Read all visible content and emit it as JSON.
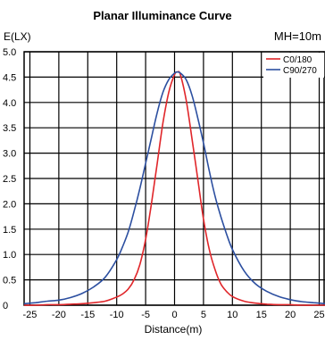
{
  "chart_data": {
    "type": "line",
    "title": "Planar Illuminance Curve",
    "xlabel": "Distance(m)",
    "ylabel": "E(LX)",
    "annotation": "MH=10m",
    "xlim": [
      -26,
      26
    ],
    "ylim": [
      0,
      5.0
    ],
    "xticks": [
      -25,
      -20,
      -15,
      -10,
      -5,
      0,
      5,
      10,
      15,
      20,
      25
    ],
    "yticks": [
      0,
      0.5,
      1.0,
      1.5,
      2.0,
      2.5,
      3.0,
      3.5,
      4.0,
      4.5,
      5.0
    ],
    "ytick_labels": [
      "0",
      "0.5",
      "1.0",
      "1.5",
      "2.0",
      "2.5",
      "3.0",
      "3.5",
      "4.0",
      "4.5",
      "5.0"
    ],
    "grid": true,
    "legend_position": "top-right",
    "series": [
      {
        "name": "C0/180",
        "color": "#e0262a",
        "x": [
          -26,
          -24,
          -22,
          -20,
          -18,
          -16,
          -14,
          -12,
          -10,
          -9,
          -8,
          -7,
          -6,
          -5,
          -4,
          -3,
          -2,
          -1,
          0,
          0.5,
          1,
          2,
          3,
          4,
          5,
          6,
          7,
          8,
          9,
          10,
          12,
          14,
          16,
          18,
          20,
          22,
          24,
          26
        ],
        "y": [
          0.0,
          0.0,
          0.01,
          0.01,
          0.02,
          0.03,
          0.05,
          0.08,
          0.16,
          0.22,
          0.32,
          0.5,
          0.8,
          1.3,
          2.0,
          2.8,
          3.6,
          4.2,
          4.55,
          4.6,
          4.55,
          4.05,
          3.3,
          2.5,
          1.7,
          1.1,
          0.7,
          0.42,
          0.27,
          0.17,
          0.08,
          0.04,
          0.02,
          0.01,
          0.01,
          0.0,
          0.0,
          0.0
        ]
      },
      {
        "name": "C90/270",
        "color": "#2c4fa0",
        "x": [
          -26,
          -24,
          -22,
          -20,
          -18,
          -16,
          -14,
          -12,
          -10,
          -9,
          -8,
          -7,
          -6,
          -5,
          -4,
          -3,
          -2,
          -1,
          0,
          0.5,
          1,
          2,
          3,
          4,
          5,
          6,
          7,
          8,
          9,
          10,
          12,
          14,
          16,
          18,
          20,
          22,
          24,
          26
        ],
        "y": [
          0.03,
          0.05,
          0.08,
          0.1,
          0.15,
          0.23,
          0.36,
          0.55,
          0.9,
          1.15,
          1.45,
          1.85,
          2.3,
          2.8,
          3.3,
          3.8,
          4.2,
          4.45,
          4.58,
          4.6,
          4.58,
          4.45,
          4.15,
          3.7,
          3.2,
          2.65,
          2.15,
          1.75,
          1.4,
          1.1,
          0.68,
          0.42,
          0.27,
          0.17,
          0.11,
          0.07,
          0.05,
          0.03
        ]
      }
    ]
  }
}
